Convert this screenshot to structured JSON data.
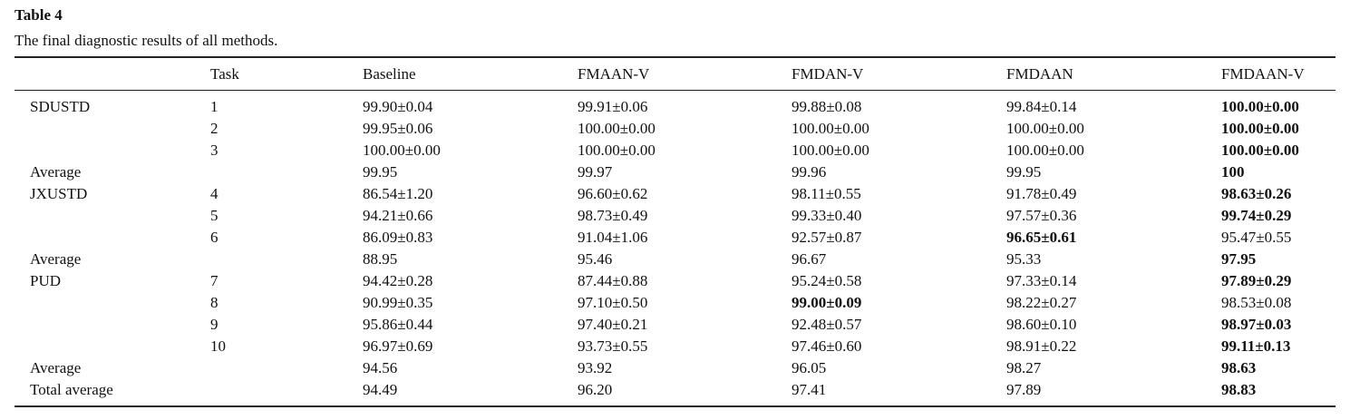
{
  "title": "Table 4",
  "caption": "The final diagnostic results of all methods.",
  "table": {
    "header": [
      null,
      "Task",
      "Baseline",
      "FMAAN-V",
      "FMDAN-V",
      "FMDAAN",
      "FMDAAN-V"
    ],
    "rows": [
      [
        "SDUSTD",
        "1",
        "99.90±0.04",
        "99.91±0.06",
        "99.88±0.08",
        "99.84±0.14",
        "100.00±0.00"
      ],
      [
        null,
        "2",
        "99.95±0.06",
        "100.00±0.00",
        "100.00±0.00",
        "100.00±0.00",
        "100.00±0.00"
      ],
      [
        null,
        "3",
        "100.00±0.00",
        "100.00±0.00",
        "100.00±0.00",
        "100.00±0.00",
        "100.00±0.00"
      ],
      [
        "Average",
        null,
        "99.95",
        "99.97",
        "99.96",
        "99.95",
        "100"
      ],
      [
        "JXUSTD",
        "4",
        "86.54±1.20",
        "96.60±0.62",
        "98.11±0.55",
        "91.78±0.49",
        "98.63±0.26"
      ],
      [
        null,
        "5",
        "94.21±0.66",
        "98.73±0.49",
        "99.33±0.40",
        "97.57±0.36",
        "99.74±0.29"
      ],
      [
        null,
        "6",
        "86.09±0.83",
        "91.04±1.06",
        "92.57±0.87",
        "96.65±0.61",
        "95.47±0.55"
      ],
      [
        "Average",
        null,
        "88.95",
        "95.46",
        "96.67",
        "95.33",
        "97.95"
      ],
      [
        "PUD",
        "7",
        "94.42±0.28",
        "87.44±0.88",
        "95.24±0.58",
        "97.33±0.14",
        "97.89±0.29"
      ],
      [
        null,
        "8",
        "90.99±0.35",
        "97.10±0.50",
        "99.00±0.09",
        "98.22±0.27",
        "98.53±0.08"
      ],
      [
        null,
        "9",
        "95.86±0.44",
        "97.40±0.21",
        "92.48±0.57",
        "98.60±0.10",
        "98.97±0.03"
      ],
      [
        null,
        "10",
        "96.97±0.69",
        "93.73±0.55",
        "97.46±0.60",
        "98.91±0.22",
        "99.11±0.13"
      ],
      [
        "Average",
        null,
        "94.56",
        "93.92",
        "96.05",
        "98.27",
        "98.63"
      ],
      [
        "Total average",
        null,
        "94.49",
        "96.20",
        "97.41",
        "97.89",
        "98.83"
      ]
    ],
    "bold": [
      [
        0,
        6
      ],
      [
        1,
        6
      ],
      [
        2,
        6
      ],
      [
        3,
        6
      ],
      [
        4,
        6
      ],
      [
        5,
        6
      ],
      [
        6,
        5
      ],
      [
        7,
        6
      ],
      [
        8,
        6
      ],
      [
        9,
        4
      ],
      [
        10,
        6
      ],
      [
        11,
        6
      ],
      [
        12,
        6
      ],
      [
        13,
        6
      ]
    ]
  }
}
